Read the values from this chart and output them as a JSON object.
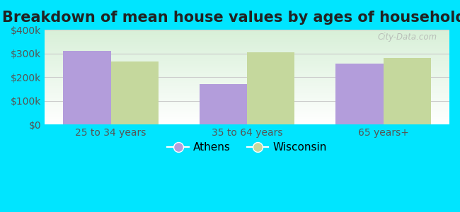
{
  "title": "Breakdown of mean house values by ages of householders",
  "categories": [
    "25 to 34 years",
    "35 to 64 years",
    "65 years+"
  ],
  "athens_values": [
    310000,
    170000,
    258000
  ],
  "wisconsin_values": [
    265000,
    305000,
    280000
  ],
  "athens_color": "#b39ddb",
  "wisconsin_color": "#c5d89d",
  "ylim": [
    0,
    400000
  ],
  "yticks": [
    0,
    100000,
    200000,
    300000,
    400000
  ],
  "ytick_labels": [
    "$0",
    "$100k",
    "$200k",
    "$300k",
    "$400k"
  ],
  "background_outer": "#00e5ff",
  "bar_width": 0.35,
  "legend_labels": [
    "Athens",
    "Wisconsin"
  ],
  "watermark": "City-Data.com",
  "title_fontsize": 15,
  "tick_fontsize": 10,
  "legend_fontsize": 11
}
